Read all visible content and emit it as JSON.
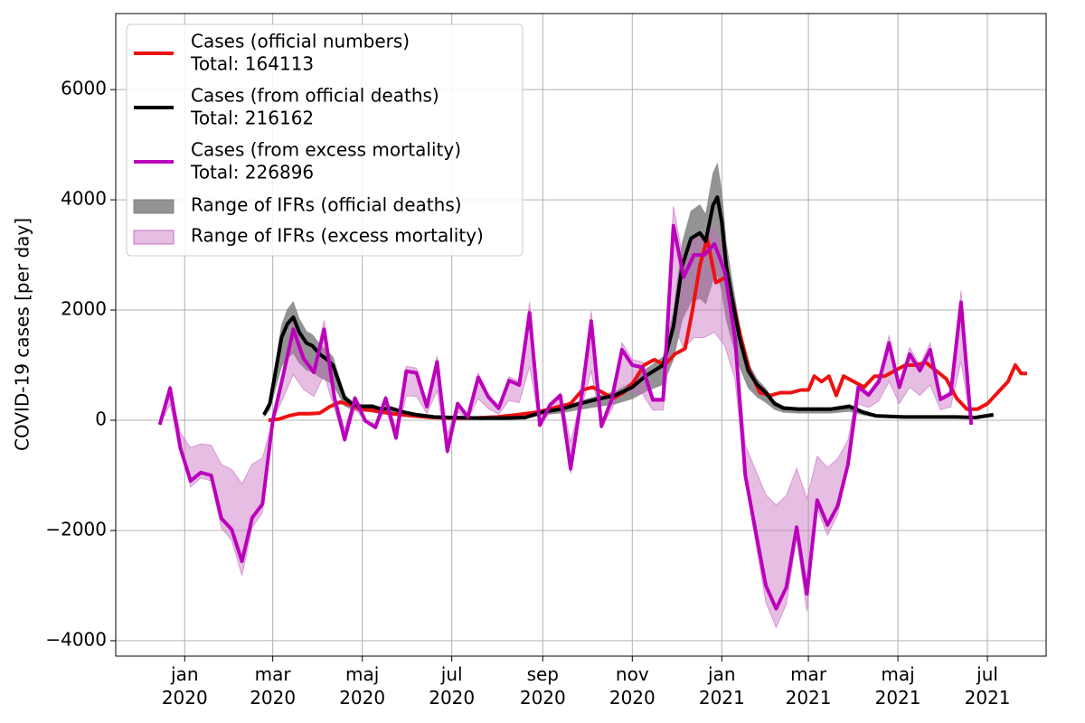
{
  "chart_data": {
    "type": "line",
    "ylabel": "COVID-19 cases [per day]",
    "xlim": [
      "2019-11-15",
      "2021-08-10"
    ],
    "ylim": [
      -4280,
      7380
    ],
    "xticks": [
      {
        "value": "2020-01",
        "label": "jan\n2020"
      },
      {
        "value": "2020-03",
        "label": "mar\n2020"
      },
      {
        "value": "2020-05",
        "label": "maj\n2020"
      },
      {
        "value": "2020-07",
        "label": "jul\n2020"
      },
      {
        "value": "2020-09",
        "label": "sep\n2020"
      },
      {
        "value": "2020-11",
        "label": "nov\n2020"
      },
      {
        "value": "2021-01",
        "label": "jan\n2021"
      },
      {
        "value": "2021-03",
        "label": "mar\n2021"
      },
      {
        "value": "2021-05",
        "label": "maj\n2021"
      },
      {
        "value": "2021-07",
        "label": "jul\n2021"
      }
    ],
    "yticks": [
      {
        "value": -4000,
        "label": "−4000"
      },
      {
        "value": -2000,
        "label": "−2000"
      },
      0,
      2000,
      4000,
      6000
    ],
    "grid": true,
    "legend": "upper left",
    "series": [
      {
        "name": "Cases (official numbers)",
        "total": "Total: 164113",
        "color": "#ee1111",
        "x": [
          "2020-02-27",
          "2020-03-05",
          "2020-03-12",
          "2020-03-19",
          "2020-03-26",
          "2020-04-02",
          "2020-04-09",
          "2020-04-16",
          "2020-04-23",
          "2020-04-30",
          "2020-05-07",
          "2020-05-14",
          "2020-05-21",
          "2020-05-28",
          "2020-06-04",
          "2020-06-18",
          "2020-07-01",
          "2020-07-15",
          "2020-08-01",
          "2020-08-15",
          "2020-08-29",
          "2020-09-05",
          "2020-09-12",
          "2020-09-20",
          "2020-09-28",
          "2020-10-05",
          "2020-10-12",
          "2020-10-19",
          "2020-10-26",
          "2020-11-02",
          "2020-11-09",
          "2020-11-16",
          "2020-11-23",
          "2020-11-30",
          "2020-12-07",
          "2020-12-12",
          "2020-12-17",
          "2020-12-22",
          "2020-12-28",
          "2021-01-04",
          "2021-01-09",
          "2021-01-14",
          "2021-01-20",
          "2021-01-27",
          "2021-02-03",
          "2021-02-10",
          "2021-02-17",
          "2021-02-24",
          "2021-03-01",
          "2021-03-05",
          "2021-03-10",
          "2021-03-15",
          "2021-03-20",
          "2021-03-25",
          "2021-04-01",
          "2021-04-08",
          "2021-04-15",
          "2021-04-22",
          "2021-04-29",
          "2021-05-06",
          "2021-05-13",
          "2021-05-20",
          "2021-05-27",
          "2021-06-03",
          "2021-06-10",
          "2021-06-17",
          "2021-06-24",
          "2021-07-01",
          "2021-07-08",
          "2021-07-15",
          "2021-07-20",
          "2021-07-24",
          "2021-07-28"
        ],
        "values": [
          0,
          20,
          80,
          120,
          120,
          130,
          250,
          330,
          280,
          200,
          180,
          150,
          120,
          100,
          80,
          50,
          40,
          40,
          60,
          100,
          150,
          200,
          250,
          300,
          550,
          600,
          500,
          400,
          500,
          700,
          1000,
          1100,
          1000,
          1200,
          1300,
          2000,
          2800,
          3300,
          2500,
          2600,
          2100,
          1500,
          900,
          500,
          450,
          500,
          500,
          550,
          550,
          800,
          700,
          800,
          450,
          800,
          700,
          600,
          800,
          800,
          900,
          1000,
          1000,
          1050,
          900,
          750,
          400,
          200,
          200,
          300,
          500,
          700,
          1000,
          850,
          850
        ]
      },
      {
        "name": "Cases (from official deaths)",
        "total": "Total: 216162",
        "color": "#000000",
        "x": [
          "2020-02-24",
          "2020-02-28",
          "2020-03-03",
          "2020-03-07",
          "2020-03-11",
          "2020-03-15",
          "2020-03-19",
          "2020-03-24",
          "2020-03-28",
          "2020-04-02",
          "2020-04-07",
          "2020-04-11",
          "2020-04-15",
          "2020-04-19",
          "2020-04-24",
          "2020-04-30",
          "2020-05-08",
          "2020-05-14",
          "2020-05-20",
          "2020-05-29",
          "2020-06-07",
          "2020-06-19",
          "2020-07-01",
          "2020-07-20",
          "2020-08-07",
          "2020-08-20",
          "2020-09-01",
          "2020-09-13",
          "2020-09-26",
          "2020-10-08",
          "2020-10-20",
          "2020-11-01",
          "2020-11-10",
          "2020-11-16",
          "2020-11-22",
          "2020-11-29",
          "2020-12-05",
          "2020-12-11",
          "2020-12-17",
          "2020-12-21",
          "2020-12-26",
          "2020-12-29",
          "2021-01-01",
          "2021-01-04",
          "2021-01-08",
          "2021-01-13",
          "2021-01-19",
          "2021-01-25",
          "2021-01-31",
          "2021-02-06",
          "2021-02-12",
          "2021-02-22",
          "2021-03-04",
          "2021-03-16",
          "2021-03-29",
          "2021-04-07",
          "2021-04-16",
          "2021-05-05",
          "2021-05-23",
          "2021-06-10",
          "2021-06-23",
          "2021-07-05"
        ],
        "values": [
          100,
          300,
          900,
          1500,
          1750,
          1870,
          1600,
          1400,
          1350,
          1200,
          1100,
          1000,
          700,
          400,
          300,
          250,
          250,
          200,
          220,
          150,
          100,
          60,
          50,
          40,
          40,
          50,
          150,
          200,
          300,
          380,
          450,
          600,
          800,
          900,
          1000,
          1700,
          2800,
          3300,
          3400,
          3250,
          3900,
          4050,
          3600,
          2800,
          2200,
          1500,
          900,
          650,
          500,
          300,
          220,
          200,
          200,
          200,
          250,
          150,
          80,
          60,
          60,
          60,
          50,
          100
        ],
        "band": {
          "name": "Range of IFRs (official deaths)",
          "color": "#808080",
          "lower": [
            65,
            195,
            585,
            975,
            1138,
            1216,
            1040,
            910,
            878,
            780,
            715,
            650,
            455,
            260,
            195,
            163,
            163,
            130,
            143,
            98,
            65,
            39,
            33,
            26,
            26,
            33,
            98,
            130,
            195,
            247,
            293,
            390,
            520,
            585,
            650,
            1105,
            1820,
            2145,
            2210,
            2113,
            2535,
            2633,
            2340,
            1820,
            1430,
            975,
            585,
            423,
            325,
            195,
            143,
            130,
            130,
            130,
            163,
            98,
            52,
            39,
            39,
            39,
            33,
            65
          ],
          "upper": [
            115,
            345,
            1035,
            1725,
            2013,
            2151,
            1840,
            1610,
            1553,
            1380,
            1265,
            1150,
            805,
            460,
            345,
            288,
            288,
            230,
            253,
            173,
            115,
            69,
            58,
            46,
            46,
            58,
            173,
            230,
            345,
            437,
            518,
            690,
            920,
            1035,
            1150,
            1955,
            3220,
            3795,
            3910,
            3738,
            4485,
            4658,
            4140,
            3220,
            2530,
            1725,
            1035,
            748,
            575,
            345,
            253,
            230,
            230,
            230,
            288,
            173,
            92,
            69,
            69,
            69,
            58,
            115
          ]
        }
      },
      {
        "name": "Cases (from excess mortality)",
        "total": "Total: 226896",
        "color": "#bb00bb",
        "x": [
          "2019-12-15",
          "2019-12-22",
          "2019-12-29",
          "2020-01-05",
          "2020-01-12",
          "2020-01-19",
          "2020-01-26",
          "2020-02-02",
          "2020-02-09",
          "2020-02-16",
          "2020-02-23",
          "2020-03-01",
          "2020-03-08",
          "2020-03-15",
          "2020-03-22",
          "2020-03-29",
          "2020-04-05",
          "2020-04-12",
          "2020-04-19",
          "2020-04-26",
          "2020-05-03",
          "2020-05-10",
          "2020-05-17",
          "2020-05-24",
          "2020-05-31",
          "2020-06-07",
          "2020-06-14",
          "2020-06-21",
          "2020-06-28",
          "2020-07-05",
          "2020-07-12",
          "2020-07-19",
          "2020-07-26",
          "2020-08-02",
          "2020-08-09",
          "2020-08-16",
          "2020-08-23",
          "2020-08-30",
          "2020-09-06",
          "2020-09-13",
          "2020-09-20",
          "2020-09-27",
          "2020-10-04",
          "2020-10-11",
          "2020-10-18",
          "2020-10-25",
          "2020-11-01",
          "2020-11-08",
          "2020-11-15",
          "2020-11-22",
          "2020-11-29",
          "2020-12-06",
          "2020-12-13",
          "2020-12-20",
          "2020-12-27",
          "2021-01-03",
          "2021-01-10",
          "2021-01-17",
          "2021-01-24",
          "2021-01-31",
          "2021-02-07",
          "2021-02-14",
          "2021-02-21",
          "2021-02-28",
          "2021-03-07",
          "2021-03-14",
          "2021-03-21",
          "2021-03-28",
          "2021-04-04",
          "2021-04-11",
          "2021-04-18",
          "2021-04-25",
          "2021-05-02",
          "2021-05-09",
          "2021-05-16",
          "2021-05-23",
          "2021-05-30",
          "2021-06-06",
          "2021-06-13",
          "2021-06-20"
        ],
        "values": [
          -80,
          580,
          -500,
          -1100,
          -950,
          -1000,
          -1780,
          -1980,
          -2560,
          -1770,
          -1520,
          0,
          800,
          1650,
          1120,
          870,
          1650,
          420,
          -350,
          400,
          -10,
          -130,
          400,
          -320,
          890,
          860,
          250,
          1060,
          -560,
          300,
          60,
          780,
          420,
          220,
          720,
          640,
          1950,
          -90,
          280,
          450,
          -880,
          350,
          1800,
          -110,
          380,
          1280,
          1000,
          960,
          370,
          370,
          3530,
          2600,
          3000,
          3000,
          3200,
          2700,
          1500,
          -1000,
          -2000,
          -3000,
          -3420,
          -3030,
          -1940,
          -3150,
          -1450,
          -1900,
          -1550,
          -800,
          600,
          460,
          700,
          1400,
          600,
          1200,
          900,
          1280,
          380,
          480,
          2140,
          -80
        ],
        "band": {
          "name": "Range of IFRs (excess mortality)",
          "color": "#c86cc0",
          "lower": [
            -88,
            290,
            -550,
            -1210,
            -1045,
            -1100,
            -1958,
            -2178,
            -2816,
            -1947,
            -1672,
            0,
            400,
            825,
            560,
            435,
            825,
            210,
            -385,
            200,
            -11,
            -143,
            200,
            -352,
            445,
            430,
            125,
            530,
            -616,
            150,
            30,
            390,
            210,
            110,
            360,
            320,
            975,
            -99,
            140,
            225,
            -968,
            175,
            900,
            -121,
            190,
            640,
            500,
            480,
            185,
            185,
            1765,
            1300,
            1500,
            1500,
            1600,
            1350,
            750,
            -1100,
            -2200,
            -3300,
            -3762,
            -3333,
            -2134,
            -3465,
            -1595,
            -2090,
            -1705,
            -880,
            300,
            230,
            350,
            700,
            300,
            600,
            450,
            640,
            190,
            240,
            1070,
            -88
          ],
          "upper": [
            -36,
            638,
            -225,
            -495,
            -428,
            -450,
            -801,
            -891,
            -1152,
            -797,
            -684,
            0,
            880,
            1815,
            1232,
            957,
            1815,
            462,
            -158,
            440,
            -5,
            -59,
            440,
            -144,
            979,
            946,
            275,
            1166,
            -252,
            330,
            66,
            858,
            462,
            242,
            792,
            704,
            2145,
            -41,
            308,
            495,
            -396,
            385,
            1980,
            -50,
            418,
            1408,
            1100,
            1056,
            407,
            407,
            3883,
            2860,
            3300,
            3300,
            3520,
            2970,
            1650,
            -450,
            -900,
            -1350,
            -1539,
            -1364,
            -873,
            -1418,
            -653,
            -855,
            -698,
            -360,
            660,
            506,
            770,
            1540,
            660,
            1320,
            990,
            1408,
            418,
            528,
            2354,
            -36
          ]
        }
      }
    ]
  }
}
